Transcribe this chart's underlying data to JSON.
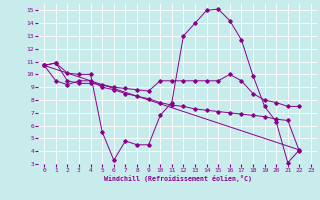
{
  "xlabel": "Windchill (Refroidissement éolien,°C)",
  "bg_color": "#c8ecec",
  "line_color": "#8b008b",
  "grid_color": "#ffffff",
  "xlim": [
    -0.5,
    23.5
  ],
  "ylim": [
    3,
    15.5
  ],
  "yticks": [
    3,
    4,
    5,
    6,
    7,
    8,
    9,
    10,
    11,
    12,
    13,
    14,
    15
  ],
  "xticks": [
    0,
    1,
    2,
    3,
    4,
    5,
    6,
    7,
    8,
    9,
    10,
    11,
    12,
    13,
    14,
    15,
    16,
    17,
    18,
    19,
    20,
    21,
    22,
    23
  ],
  "lines": [
    {
      "x": [
        0,
        1,
        2,
        3,
        4,
        5,
        6,
        7,
        8,
        9,
        10,
        11,
        12,
        13,
        14,
        15,
        16,
        17,
        18,
        19,
        20,
        21,
        22
      ],
      "y": [
        10.7,
        10.9,
        10.1,
        10.0,
        10.0,
        5.5,
        3.3,
        4.8,
        4.5,
        4.5,
        6.8,
        7.8,
        13.0,
        14.0,
        15.0,
        15.1,
        14.2,
        12.7,
        9.9,
        7.5,
        6.3,
        3.1,
        4.1
      ]
    },
    {
      "x": [
        0,
        1,
        2,
        3,
        4,
        5,
        6,
        7,
        8,
        9,
        10,
        11,
        12,
        13,
        14,
        15,
        16,
        17,
        18,
        19,
        20,
        21,
        22
      ],
      "y": [
        10.7,
        10.9,
        9.5,
        9.3,
        9.3,
        9.2,
        9.0,
        8.9,
        8.8,
        8.7,
        9.5,
        9.5,
        9.5,
        9.5,
        9.5,
        9.5,
        10.0,
        9.5,
        8.5,
        8.0,
        7.8,
        7.5,
        7.5
      ]
    },
    {
      "x": [
        0,
        1,
        2,
        3,
        4,
        5,
        6,
        7,
        8,
        9,
        10,
        11,
        12,
        13,
        14,
        15,
        16,
        17,
        18,
        19,
        20,
        21,
        22
      ],
      "y": [
        10.7,
        9.5,
        9.2,
        9.5,
        9.5,
        9.0,
        8.8,
        8.5,
        8.3,
        8.1,
        7.8,
        7.6,
        7.5,
        7.3,
        7.2,
        7.1,
        7.0,
        6.9,
        6.8,
        6.7,
        6.5,
        6.4,
        4.0
      ]
    },
    {
      "x": [
        0,
        22
      ],
      "y": [
        10.7,
        4.1
      ]
    }
  ]
}
